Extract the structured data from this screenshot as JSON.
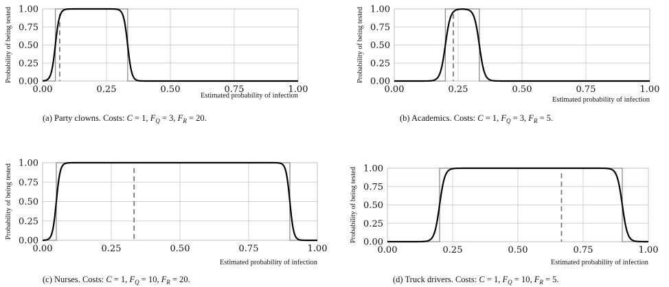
{
  "chart_data": [
    {
      "type": "line",
      "xlabel": "Estimated probability of infection",
      "ylabel": "Probability of being tested",
      "xlim": [
        0,
        1
      ],
      "ylim": [
        0,
        1
      ],
      "xticks": [
        "0.00",
        "0.25",
        "0.50",
        "0.75",
        "1.00"
      ],
      "yticks": [
        "0.00",
        "0.25",
        "0.50",
        "0.75",
        "1.00"
      ],
      "grid": true,
      "step_interval": [
        0.05,
        0.333
      ],
      "dashed_x": 0.067,
      "smooth_width": 0.008,
      "caption": {
        "prefix": "(a) Party clowns. Costs: ",
        "C": "1",
        "FQ": "3",
        "FR": "20"
      }
    },
    {
      "type": "line",
      "xlabel": "Estimated probability of infection",
      "ylabel": "Probability of being tested",
      "xlim": [
        0,
        1
      ],
      "ylim": [
        0,
        1
      ],
      "xticks": [
        "0.00",
        "0.25",
        "0.50",
        "0.75",
        "1.00"
      ],
      "yticks": [
        "0.00",
        "0.25",
        "0.50",
        "0.75",
        "1.00"
      ],
      "grid": true,
      "step_interval": [
        0.2,
        0.333
      ],
      "dashed_x": 0.231,
      "smooth_width": 0.01,
      "caption": {
        "prefix": "(b) Academics. Costs: ",
        "C": "1",
        "FQ": "3",
        "FR": "5"
      }
    },
    {
      "type": "line",
      "xlabel": "Estimated probability of infection",
      "ylabel": "Probability of being tested",
      "xlim": [
        0,
        1
      ],
      "ylim": [
        0,
        1
      ],
      "xticks": [
        "0.00",
        "0.25",
        "0.50",
        "0.75",
        "1.00"
      ],
      "yticks": [
        "0.00",
        "0.25",
        "0.50",
        "0.75",
        "1.00"
      ],
      "grid": true,
      "step_interval": [
        0.05,
        0.9
      ],
      "dashed_x": 0.333,
      "smooth_width": 0.007,
      "caption": {
        "prefix": "(c) Nurses. Costs: ",
        "C": "1",
        "FQ": "10",
        "FR": "20"
      }
    },
    {
      "type": "line",
      "xlabel": "Estimated probability of infection",
      "ylabel": "Probability of being tested",
      "xlim": [
        0,
        1
      ],
      "ylim": [
        0,
        1
      ],
      "xticks": [
        "0.00",
        "0.25",
        "0.50",
        "0.75",
        "1.00"
      ],
      "yticks": [
        "0.00",
        "0.25",
        "0.50",
        "0.75",
        "1.00"
      ],
      "grid": true,
      "step_interval": [
        0.2,
        0.9
      ],
      "dashed_x": 0.667,
      "smooth_width": 0.01,
      "caption": {
        "prefix": "(d) Truck drivers. Costs: ",
        "C": "1",
        "FQ": "10",
        "FR": "5"
      }
    }
  ]
}
